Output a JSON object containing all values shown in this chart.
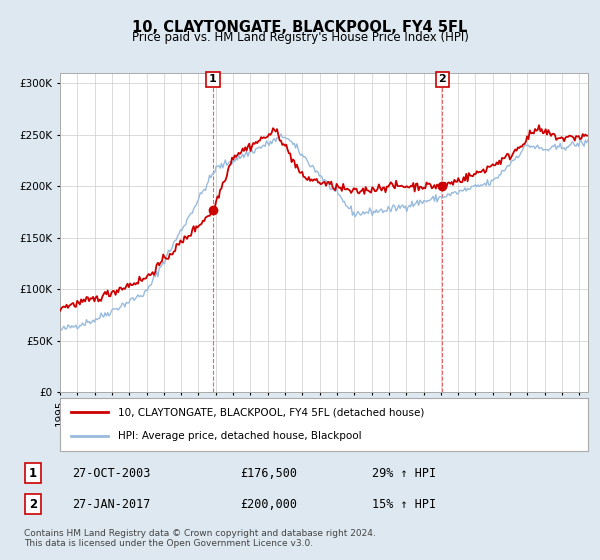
{
  "title": "10, CLAYTONGATE, BLACKPOOL, FY4 5FL",
  "subtitle": "Price paid vs. HM Land Registry's House Price Index (HPI)",
  "ylim": [
    0,
    310000
  ],
  "yticks": [
    0,
    50000,
    100000,
    150000,
    200000,
    250000,
    300000
  ],
  "line_color_property": "#cc0000",
  "line_color_hpi": "#99bbdd",
  "annotation1_date": "27-OCT-2003",
  "annotation1_price": "£176,500",
  "annotation1_hpi": "29% ↑ HPI",
  "annotation1_label": "1",
  "annotation2_date": "27-JAN-2017",
  "annotation2_price": "£200,000",
  "annotation2_hpi": "15% ↑ HPI",
  "annotation2_label": "2",
  "legend_property": "10, CLAYTONGATE, BLACKPOOL, FY4 5FL (detached house)",
  "legend_hpi": "HPI: Average price, detached house, Blackpool",
  "footnote": "Contains HM Land Registry data © Crown copyright and database right 2024.\nThis data is licensed under the Open Government Licence v3.0.",
  "background_color": "#dde8f0",
  "plot_bg_color": "#ffffff",
  "marker1_value": 176500,
  "marker1_year": 2003.83,
  "marker2_value": 200000,
  "marker2_year": 2017.08,
  "xlim_start": 1995,
  "xlim_end": 2025.5
}
